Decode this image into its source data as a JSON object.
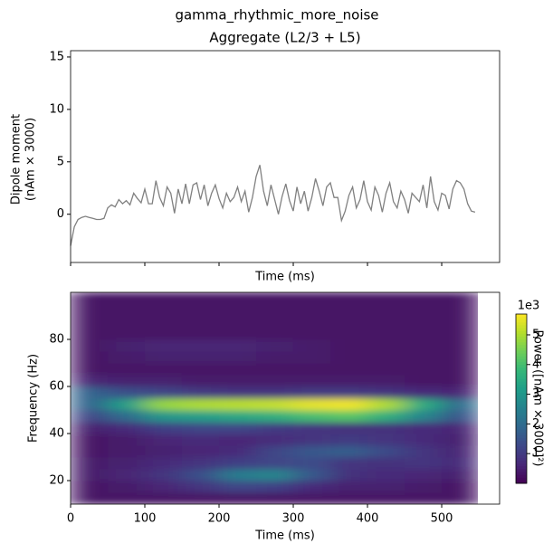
{
  "title": "gamma_rhythmic_more_noise",
  "chart_data": [
    {
      "type": "line",
      "title": "Aggregate (L2/3 + L5)",
      "xlabel": "Time (ms)",
      "ylabel": [
        "Dipole moment",
        "(nAm × 3000)"
      ],
      "xlim": [
        0,
        578
      ],
      "ylim": [
        -4.6,
        15.6
      ],
      "xticks": [
        0,
        100,
        200,
        300,
        400,
        500
      ],
      "yticks": [
        0,
        5,
        10,
        15
      ],
      "series": [
        {
          "color": "#808080",
          "x": [
            0,
            5,
            10,
            15,
            20,
            25,
            30,
            35,
            40,
            45,
            50,
            55,
            60,
            65,
            70,
            75,
            80,
            85,
            90,
            95,
            100,
            105,
            110,
            115,
            120,
            125,
            130,
            135,
            140,
            145,
            150,
            155,
            160,
            165,
            170,
            175,
            180,
            185,
            190,
            195,
            200,
            205,
            210,
            215,
            220,
            225,
            230,
            235,
            240,
            245,
            250,
            255,
            260,
            265,
            270,
            275,
            280,
            285,
            290,
            295,
            300,
            305,
            310,
            315,
            320,
            325,
            330,
            335,
            340,
            345,
            350,
            355,
            360,
            365,
            370,
            375,
            380,
            385,
            390,
            395,
            400,
            405,
            410,
            415,
            420,
            425,
            430,
            435,
            440,
            445,
            450,
            455,
            460,
            465,
            470,
            475,
            480,
            485,
            490,
            495,
            500,
            505,
            510,
            515,
            520,
            525,
            530,
            535,
            540,
            545
          ],
          "values": [
            -3.0,
            -1.2,
            -0.5,
            -0.3,
            -0.2,
            -0.3,
            -0.4,
            -0.5,
            -0.5,
            -0.4,
            0.6,
            0.9,
            0.7,
            1.4,
            1.0,
            1.3,
            0.9,
            2.0,
            1.5,
            1.1,
            2.4,
            1.0,
            1.0,
            3.2,
            1.6,
            0.8,
            2.6,
            2.0,
            0.1,
            2.4,
            1.0,
            2.9,
            1.0,
            2.8,
            3.0,
            1.4,
            2.8,
            0.8,
            2.0,
            2.8,
            1.5,
            0.6,
            2.0,
            1.2,
            1.6,
            2.6,
            1.2,
            2.2,
            0.2,
            1.6,
            3.6,
            4.7,
            2.2,
            0.8,
            2.8,
            1.4,
            0.0,
            1.7,
            2.9,
            1.3,
            0.3,
            2.6,
            1.0,
            2.2,
            0.3,
            1.6,
            3.4,
            2.2,
            0.8,
            2.6,
            3.0,
            1.6,
            1.6,
            -0.6,
            0.3,
            1.8,
            2.6,
            0.6,
            1.4,
            3.2,
            1.2,
            0.4,
            2.6,
            1.8,
            0.2,
            2.0,
            3.0,
            1.2,
            0.6,
            2.2,
            1.4,
            0.1,
            2.0,
            1.6,
            1.2,
            2.8,
            0.6,
            3.6,
            1.2,
            0.4,
            2.0,
            1.8,
            0.5,
            2.4,
            3.2,
            3.0,
            2.4,
            1.0,
            0.3,
            0.2
          ]
        }
      ]
    },
    {
      "type": "heatmap",
      "xlabel": "Time (ms)",
      "ylabel": "Frequency (Hz)",
      "xlim": [
        0,
        578
      ],
      "ylim": [
        10,
        100
      ],
      "xticks": [
        0,
        100,
        200,
        300,
        400,
        500
      ],
      "yticks": [
        20,
        40,
        60,
        80
      ],
      "x_edges": [
        0,
        50,
        100,
        150,
        200,
        250,
        300,
        350,
        400,
        450,
        500,
        550
      ],
      "y_edges": [
        10,
        15,
        20,
        25,
        30,
        35,
        40,
        45,
        50,
        55,
        60,
        65,
        70,
        75,
        80,
        85,
        90,
        95,
        100
      ],
      "colormap": "viridis",
      "clim": [
        0,
        5700
      ],
      "values": [
        [
          300,
          300,
          300,
          300,
          300,
          300,
          300,
          300,
          300,
          300,
          300
        ],
        [
          300,
          400,
          600,
          900,
          1200,
          1100,
          700,
          500,
          500,
          400,
          300
        ],
        [
          400,
          600,
          900,
          1400,
          2400,
          2600,
          1600,
          800,
          700,
          600,
          500
        ],
        [
          400,
          500,
          700,
          900,
          1100,
          1200,
          1300,
          900,
          800,
          900,
          700
        ],
        [
          300,
          400,
          500,
          600,
          700,
          1200,
          1600,
          1700,
          1300,
          900,
          600
        ],
        [
          300,
          400,
          600,
          700,
          600,
          700,
          900,
          1000,
          900,
          700,
          500
        ],
        [
          500,
          700,
          1100,
          1200,
          1200,
          1000,
          900,
          800,
          800,
          700,
          600
        ],
        [
          1200,
          2000,
          3000,
          3200,
          3400,
          3600,
          4000,
          4200,
          3600,
          2600,
          1500
        ],
        [
          1800,
          3200,
          4800,
          5000,
          5100,
          5200,
          5500,
          5600,
          5000,
          3500,
          2000
        ],
        [
          1800,
          1400,
          1200,
          1000,
          900,
          900,
          1000,
          1000,
          900,
          700,
          600
        ],
        [
          600,
          500,
          500,
          400,
          400,
          400,
          400,
          400,
          400,
          300,
          300
        ],
        [
          300,
          300,
          300,
          300,
          300,
          300,
          300,
          300,
          300,
          300,
          300
        ],
        [
          300,
          400,
          500,
          500,
          500,
          400,
          400,
          300,
          300,
          300,
          300
        ],
        [
          300,
          500,
          600,
          600,
          600,
          500,
          400,
          300,
          300,
          300,
          300
        ],
        [
          300,
          300,
          300,
          300,
          300,
          300,
          300,
          300,
          300,
          300,
          300
        ],
        [
          300,
          300,
          300,
          300,
          300,
          300,
          300,
          300,
          300,
          300,
          300
        ],
        [
          300,
          300,
          300,
          300,
          300,
          300,
          300,
          300,
          300,
          300,
          300
        ],
        [
          300,
          300,
          300,
          300,
          300,
          300,
          300,
          300,
          300,
          300,
          300
        ]
      ],
      "colorbar": {
        "label": "Power ([nAm × 3000]²)",
        "offset_label": "1e3",
        "ticks": [
          {
            "value": 1000,
            "label": "1"
          },
          {
            "value": 2000,
            "label": "2"
          },
          {
            "value": 3000,
            "label": "3"
          },
          {
            "value": 4000,
            "label": "4"
          },
          {
            "value": 5000,
            "label": "5"
          }
        ]
      }
    }
  ]
}
